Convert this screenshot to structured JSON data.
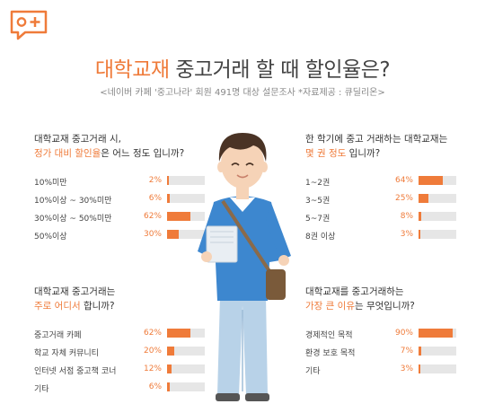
{
  "colors": {
    "accent": "#ef7b3a",
    "bar_track": "#e6e6e6"
  },
  "logo": {
    "icon": "chat-plus-icon",
    "label": "o+"
  },
  "header": {
    "title_highlight": "대학교재",
    "title_rest": " 중고거래 할 때 할인율은?",
    "subtitle": "<네이버 카페 '중고나라' 회원 491명 대상 설문조사 *자료제공 : 큐딜리온>"
  },
  "sections": [
    {
      "q_line1": "대학교재 중고거래 시,",
      "q_highlight": "정가 대비 할인율",
      "q_after": "은 어느 정도 입니까?",
      "rows": [
        {
          "label": "10%미만",
          "pct": "2%",
          "value": 2
        },
        {
          "label": "10%이상 ~ 30%미만",
          "pct": "6%",
          "value": 6
        },
        {
          "label": "30%이상 ~ 50%미만",
          "pct": "62%",
          "value": 62
        },
        {
          "label": "50%이상",
          "pct": "30%",
          "value": 30
        }
      ]
    },
    {
      "q_line1": "한 학기에 중고 거래하는 대학교재는",
      "q_highlight": "몇 권 정도",
      "q_after": " 입니까?",
      "rows": [
        {
          "label": "1~2권",
          "pct": "64%",
          "value": 64
        },
        {
          "label": "3~5권",
          "pct": "25%",
          "value": 25
        },
        {
          "label": "5~7권",
          "pct": "8%",
          "value": 8
        },
        {
          "label": "8권 이상",
          "pct": "3%",
          "value": 3
        }
      ]
    },
    {
      "q_line1": "대학교재 중고거래는",
      "q_highlight": "주로 어디서",
      "q_after": " 합니까?",
      "rows": [
        {
          "label": "중고거래 카페",
          "pct": "62%",
          "value": 62
        },
        {
          "label": "학교 자체 커뮤니티",
          "pct": "20%",
          "value": 20
        },
        {
          "label": "인터넷 서점 중고책 코너",
          "pct": "12%",
          "value": 12
        },
        {
          "label": "기타",
          "pct": "6%",
          "value": 6
        }
      ]
    },
    {
      "q_line1": "대학교재를 중고거래하는",
      "q_highlight": "가장 큰 이유",
      "q_after": "는 무엇입니까?",
      "rows": [
        {
          "label": "경제적인 목적",
          "pct": "90%",
          "value": 90
        },
        {
          "label": "환경 보호 목적",
          "pct": "7%",
          "value": 7
        },
        {
          "label": "기타",
          "pct": "3%",
          "value": 3
        }
      ]
    }
  ]
}
